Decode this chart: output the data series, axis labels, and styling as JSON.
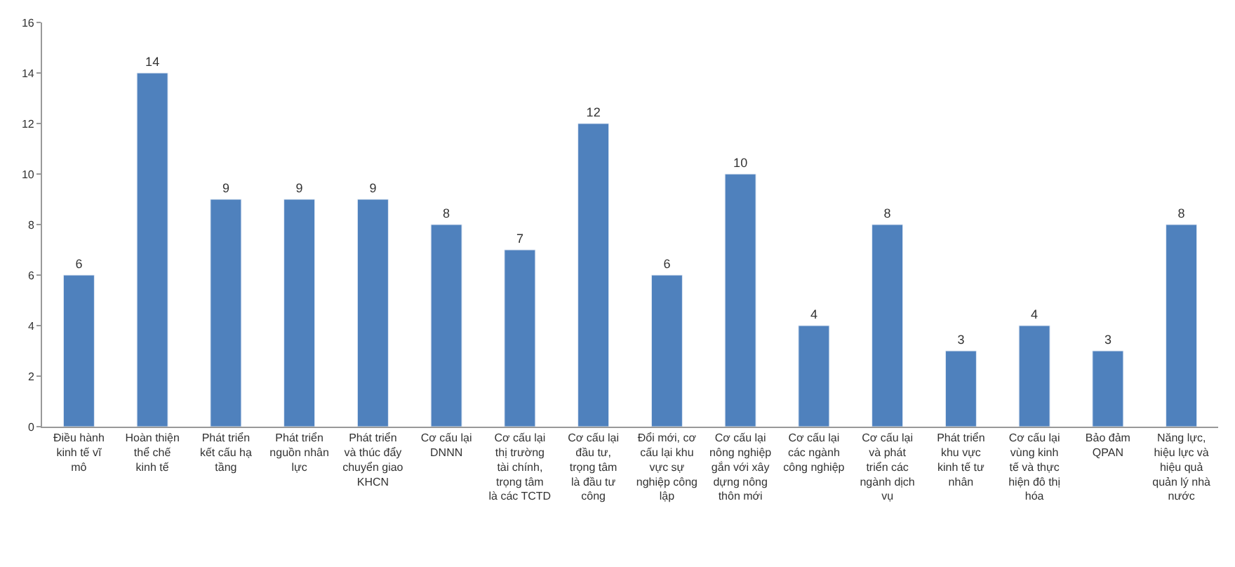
{
  "chart_data": {
    "type": "bar",
    "categories": [
      "Điều hành kinh tế vĩ mô",
      "Hoàn thiện thể chế kinh tế",
      "Phát triển kết cấu hạ tầng",
      "Phát triển nguồn nhân lực",
      "Phát triển và thúc đẩy chuyển giao KHCN",
      "Cơ cấu lại DNNN",
      "Cơ cấu lại thị trường tài chính, trọng tâm là các TCTD",
      "Cơ cấu lại đầu tư, trọng tâm là đầu tư công",
      "Đổi mới, cơ cấu lại khu vực sự nghiệp công lập",
      "Cơ cấu lại nông nghiệp gắn với xây dựng nông thôn mới",
      "Cơ cấu lại các ngành công nghiệp",
      "Cơ cấu lại và phát triển các ngành dịch vụ",
      "Phát triển khu vực kinh tế tư nhân",
      "Cơ cấu lại vùng kinh tế và thực hiện đô thị hóa",
      "Bảo đảm QPAN",
      "Năng lực, hiệu lực và hiệu quả quản lý nhà nước"
    ],
    "values": [
      6,
      14,
      9,
      9,
      9,
      8,
      7,
      12,
      6,
      10,
      4,
      8,
      3,
      4,
      3,
      8
    ],
    "color": "#4f81bd",
    "ylim": [
      0,
      16
    ],
    "yticks": [
      0,
      2,
      4,
      6,
      8,
      10,
      12,
      14,
      16
    ],
    "data_labels": true
  }
}
